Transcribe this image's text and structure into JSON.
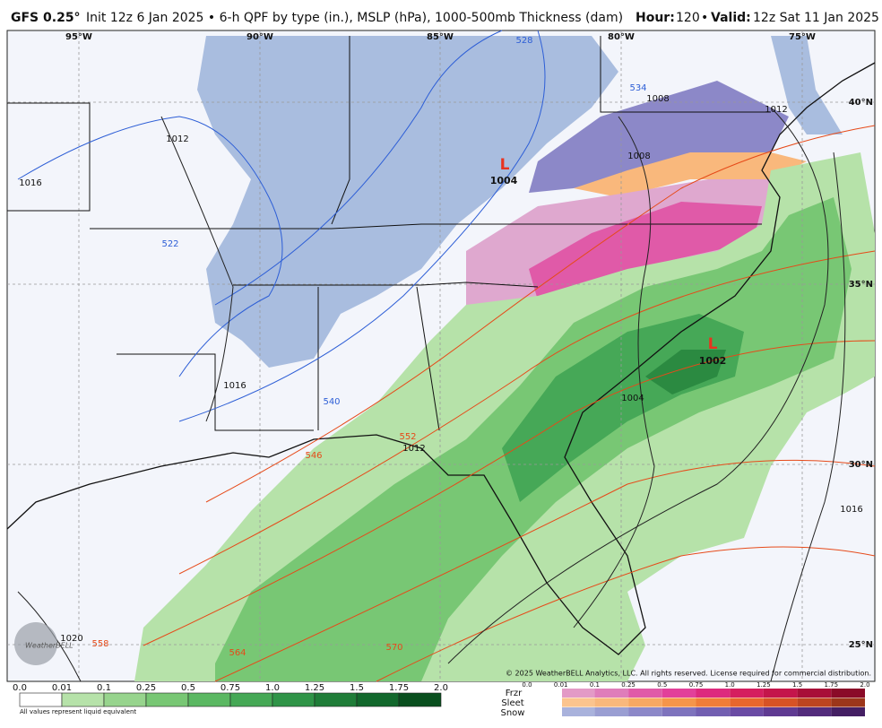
{
  "header": {
    "title": "GFS 0.25°",
    "subtitle": "Init 12z 6 Jan 2025 • 6-h QPF by type (in.), MSLP (hPa), 1000-500mb Thickness (dam)",
    "hour_label": "Hour:",
    "hour": "120",
    "separator": "•",
    "valid_label": "Valid:",
    "valid": "12z Sat 11 Jan 2025"
  },
  "map": {
    "lon_labels": [
      "95°W",
      "90°W",
      "85°W",
      "80°W",
      "75°W"
    ],
    "lat_labels": [
      "40°N",
      "35°N",
      "30°N",
      "25°N"
    ],
    "lows": [
      {
        "symbol": "L",
        "pressure": "1004"
      },
      {
        "symbol": "L",
        "pressure": "1002"
      }
    ],
    "isobar_labels": [
      "1016",
      "1012",
      "1016",
      "1012",
      "1008",
      "1008",
      "1012",
      "1004",
      "1016",
      "1020"
    ],
    "thickness_labels": [
      "528",
      "534",
      "522",
      "540",
      "546",
      "552",
      "558",
      "564",
      "570"
    ],
    "logo": "WeatherBELL",
    "copyright": "© 2025 WeatherBELL Analytics, LLC. All rights reserved. License required for commercial distribution."
  },
  "legend": {
    "rain_values": [
      "0.0",
      "0.01",
      "0.1",
      "0.25",
      "0.5",
      "0.75",
      "1.0",
      "1.25",
      "1.5",
      "1.75",
      "2.0"
    ],
    "note": "All values represent liquid equivalent",
    "type_values": [
      "0.0",
      "0.01",
      "0.1",
      "0.25",
      "0.5",
      "0.75",
      "1.0",
      "1.25",
      "1.5",
      "1.75",
      "2.0"
    ],
    "types": [
      "Frzr",
      "Sleet",
      "Snow"
    ]
  }
}
